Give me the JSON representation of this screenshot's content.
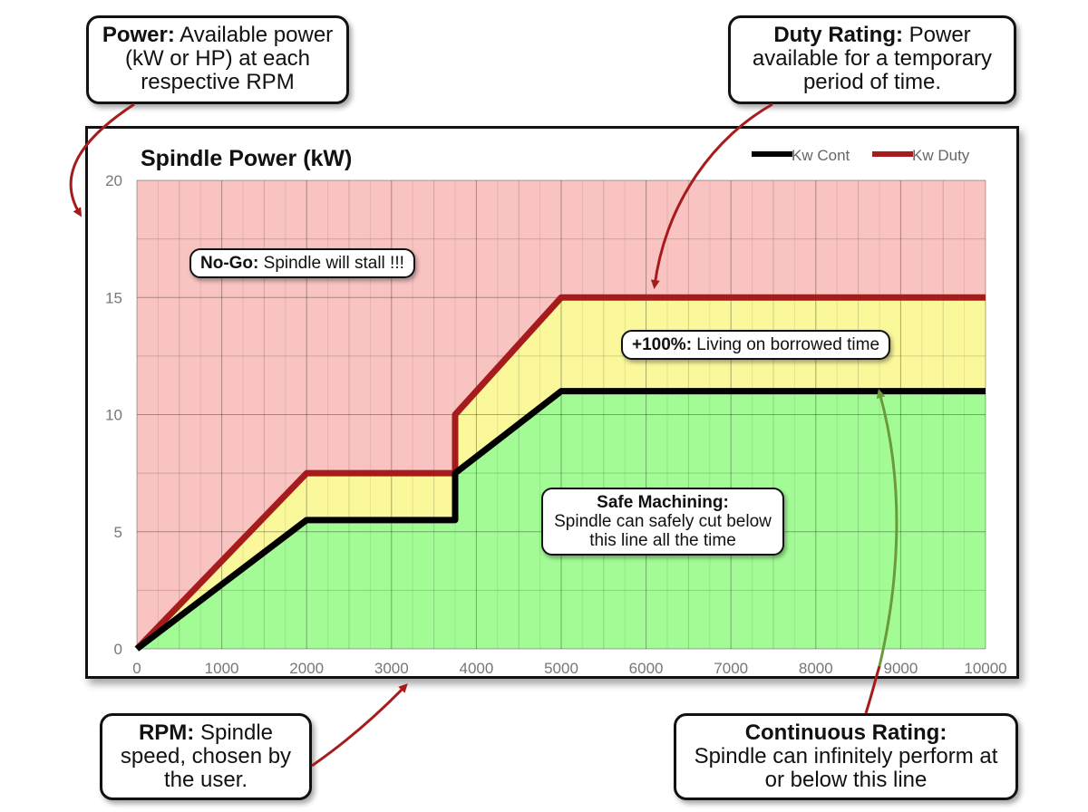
{
  "callouts": {
    "power": {
      "bold": "Power:",
      "text": " Available power (kW or HP) at each respective RPM"
    },
    "duty": {
      "bold": "Duty Rating:",
      "text": " Power available for a temporary period of time."
    },
    "rpm": {
      "bold": "RPM:",
      "text": " Spindle speed, chosen by the user."
    },
    "continuous": {
      "bold": "Continuous Rating:",
      "text": "Spindle can infinitely perform at or below this line"
    }
  },
  "annotations": {
    "nogo": {
      "bold": "No-Go:",
      "text": " Spindle will stall !!!"
    },
    "borrowed": {
      "bold": "+100%:",
      "text": " Living on borrowed time"
    },
    "safe": {
      "bold": "Safe Machining:",
      "text": "Spindle can safely cut below this line all the time"
    }
  },
  "colors": {
    "nogo_zone": "#f8c3c1",
    "duty_zone": "#fbf79b",
    "safe_zone": "#a3fb96",
    "cont_line": "#000000",
    "duty_line": "#a61c1c",
    "arrow": "#a61c1c",
    "arrow_green": "#6a9a3a"
  },
  "chart_data": {
    "type": "area",
    "title": "Spindle Power (kW)",
    "xlim": [
      0,
      10000
    ],
    "ylim": [
      0,
      20
    ],
    "x_ticks": [
      0,
      1000,
      2000,
      3000,
      4000,
      5000,
      6000,
      7000,
      8000,
      9000,
      10000
    ],
    "y_ticks": [
      0,
      5,
      10,
      15,
      20
    ],
    "grid": true,
    "legend_position": "top-right",
    "series": [
      {
        "name": "Kw Cont",
        "x": [
          0,
          2000,
          3750,
          3750,
          5000,
          10000
        ],
        "y": [
          0,
          5.5,
          5.5,
          7.5,
          11,
          11
        ]
      },
      {
        "name": "Kw Duty",
        "x": [
          0,
          2000,
          3750,
          3750,
          5000,
          10000
        ],
        "y": [
          0,
          7.5,
          7.5,
          10,
          15,
          15
        ]
      }
    ]
  }
}
